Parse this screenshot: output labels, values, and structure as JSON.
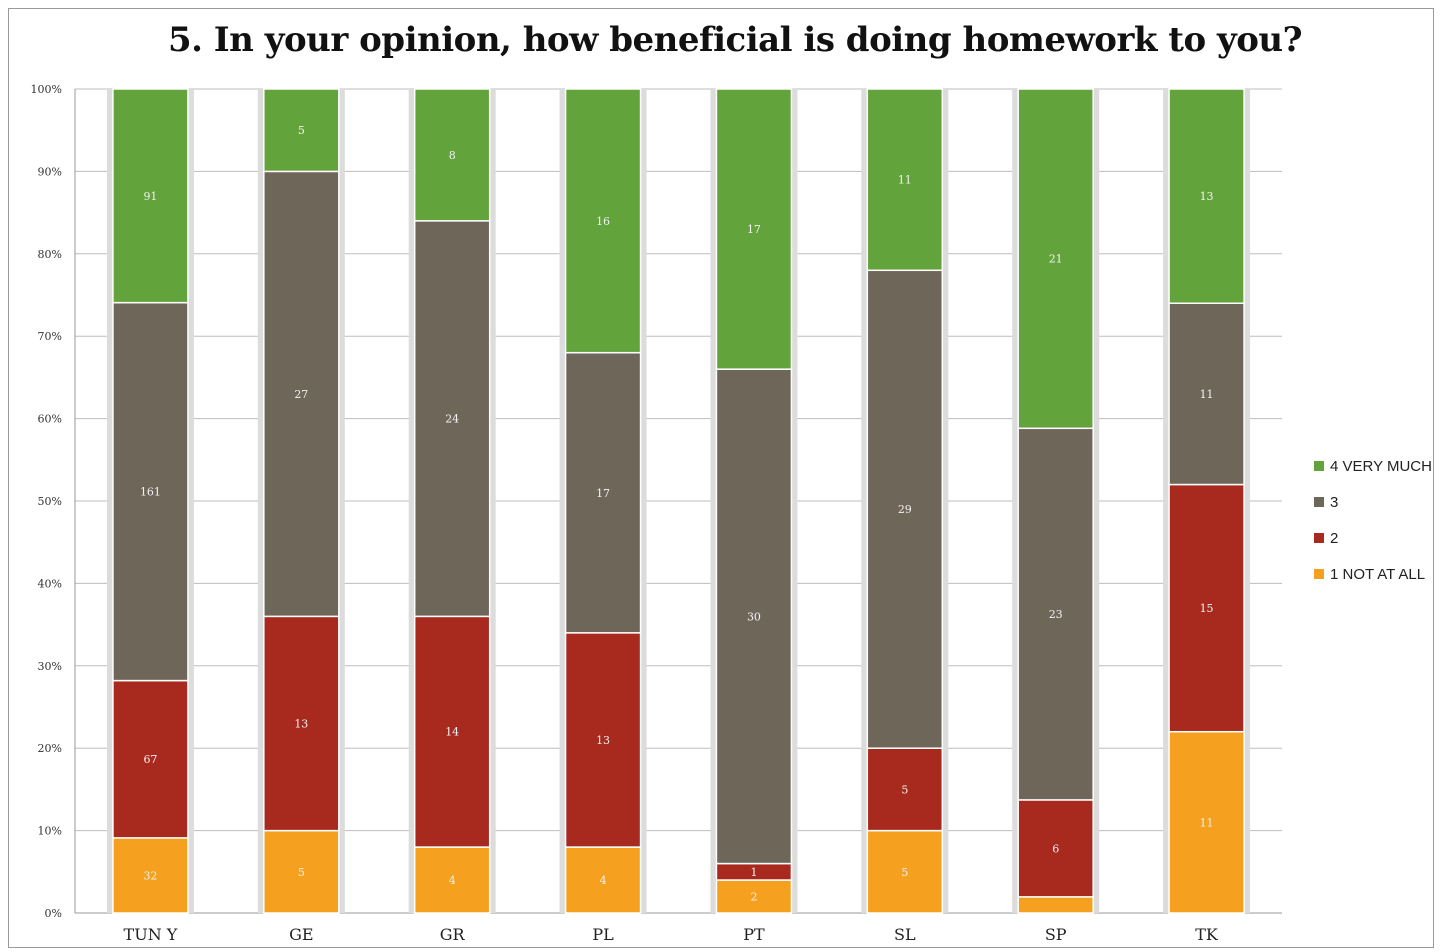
{
  "chart_data": {
    "type": "bar",
    "stacked": true,
    "normalized": true,
    "title": "5. In your opinion, how beneficial is doing homework to you?",
    "categories": [
      "TUN Y",
      "GE",
      "GR",
      "PL",
      "PT",
      "SL",
      "SP",
      "TK"
    ],
    "y_ticks": [
      "0%",
      "10%",
      "20%",
      "30%",
      "40%",
      "50%",
      "60%",
      "70%",
      "80%",
      "90%",
      "100%"
    ],
    "ylim": [
      0,
      100
    ],
    "legend_position": "right",
    "series": [
      {
        "name": "1 NOT AT ALL",
        "color": "#f5a01e",
        "values": [
          32,
          5,
          4,
          4,
          2,
          5,
          1,
          11
        ],
        "labels": [
          "32",
          "5",
          "4",
          "4",
          "2",
          "5",
          "",
          "11"
        ]
      },
      {
        "name": "2",
        "color": "#a8291d",
        "values": [
          67,
          13,
          14,
          13,
          1,
          5,
          6,
          15
        ],
        "labels": [
          "67",
          "13",
          "14",
          "13",
          "1",
          "5",
          "6",
          "15"
        ]
      },
      {
        "name": "3",
        "color": "#6f665a",
        "values": [
          161,
          27,
          24,
          17,
          30,
          29,
          23,
          11
        ],
        "labels": [
          "161",
          "27",
          "24",
          "17",
          "30",
          "29",
          "23",
          "11"
        ]
      },
      {
        "name": "4 VERY MUCH",
        "color": "#62a33b",
        "values": [
          91,
          5,
          8,
          16,
          17,
          11,
          21,
          13
        ],
        "labels": [
          "91",
          "5",
          "8",
          "16",
          "17",
          "11",
          "21",
          "13"
        ]
      }
    ]
  }
}
